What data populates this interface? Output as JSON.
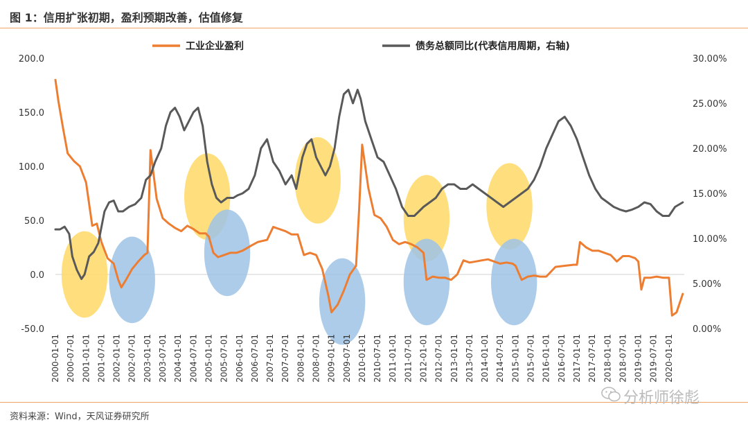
{
  "header": {
    "title": "图 1：信用扩张初期，盈利预期改善，估值修复"
  },
  "footer": {
    "source": "资料来源：Wind，天风证券研究所"
  },
  "watermark": {
    "text": "分析师徐彪",
    "icon": "wechat-icon"
  },
  "colors": {
    "orange": "#ED7D31",
    "gray": "#595959",
    "yellow_circle": "#FFD966",
    "blue_circle": "#9DC3E6",
    "rule": "#F0A060"
  },
  "chart_data": {
    "type": "line",
    "title": "",
    "legend_position": "top",
    "x_tick_labels": [
      "2000-01-01",
      "2000-07-01",
      "2001-01-01",
      "2001-07-01",
      "2002-01-01",
      "2002-07-01",
      "2003-01-01",
      "2003-07-01",
      "2004-01-01",
      "2004-07-01",
      "2005-01-01",
      "2005-07-01",
      "2006-01-01",
      "2006-07-01",
      "2007-01-01",
      "2007-07-01",
      "2008-01-01",
      "2008-07-01",
      "2009-01-01",
      "2009-07-01",
      "2010-01-01",
      "2010-07-01",
      "2011-01-01",
      "2011-07-01",
      "2012-01-01",
      "2012-07-01",
      "2013-01-01",
      "2013-07-01",
      "2014-01-01",
      "2014-07-01",
      "2015-01-01",
      "2015-07-01",
      "2016-01-01",
      "2016-07-01",
      "2017-01-01",
      "2017-07-01",
      "2018-01-01",
      "2018-07-01",
      "2019-01-01",
      "2019-07-01",
      "2020-01-01"
    ],
    "y_left": {
      "ticks": [
        "200.0",
        "150.0",
        "100.0",
        "50.0",
        "0.0",
        "-50.0"
      ],
      "range": [
        -50,
        200
      ]
    },
    "y_right": {
      "ticks": [
        "30.00%",
        "25.00%",
        "20.00%",
        "15.00%",
        "10.00%",
        "5.00%",
        "0.00%"
      ],
      "range": [
        0,
        30
      ]
    },
    "series": [
      {
        "name": "工业企业盈利",
        "axis": "left",
        "points": [
          [
            2000.0,
            180
          ],
          [
            2000.1,
            160
          ],
          [
            2000.25,
            135
          ],
          [
            2000.4,
            112
          ],
          [
            2000.6,
            105
          ],
          [
            2000.8,
            100
          ],
          [
            2001.0,
            85
          ],
          [
            2001.2,
            45
          ],
          [
            2001.35,
            47
          ],
          [
            2001.5,
            30
          ],
          [
            2001.7,
            15
          ],
          [
            2001.9,
            10
          ],
          [
            2002.05,
            -5
          ],
          [
            2002.15,
            -12
          ],
          [
            2002.3,
            -5
          ],
          [
            2002.5,
            5
          ],
          [
            2002.7,
            12
          ],
          [
            2002.9,
            18
          ],
          [
            2003.0,
            20
          ],
          [
            2003.1,
            115
          ],
          [
            2003.3,
            70
          ],
          [
            2003.5,
            52
          ],
          [
            2003.7,
            47
          ],
          [
            2003.9,
            43
          ],
          [
            2004.1,
            40
          ],
          [
            2004.3,
            45
          ],
          [
            2004.5,
            42
          ],
          [
            2004.7,
            38
          ],
          [
            2004.9,
            38
          ],
          [
            2005.0,
            35
          ],
          [
            2005.15,
            20
          ],
          [
            2005.3,
            16
          ],
          [
            2005.5,
            18
          ],
          [
            2005.7,
            20
          ],
          [
            2005.9,
            20
          ],
          [
            2006.1,
            22
          ],
          [
            2006.4,
            27
          ],
          [
            2006.6,
            30
          ],
          [
            2006.9,
            32
          ],
          [
            2007.1,
            44
          ],
          [
            2007.3,
            42
          ],
          [
            2007.5,
            40
          ],
          [
            2007.7,
            37
          ],
          [
            2007.9,
            37
          ],
          [
            2008.1,
            18
          ],
          [
            2008.3,
            20
          ],
          [
            2008.5,
            18
          ],
          [
            2008.7,
            5
          ],
          [
            2008.9,
            -20
          ],
          [
            2009.0,
            -35
          ],
          [
            2009.2,
            -28
          ],
          [
            2009.4,
            -15
          ],
          [
            2009.6,
            0
          ],
          [
            2009.8,
            8
          ],
          [
            2009.9,
            60
          ],
          [
            2010.0,
            120
          ],
          [
            2010.2,
            80
          ],
          [
            2010.4,
            55
          ],
          [
            2010.6,
            52
          ],
          [
            2010.8,
            44
          ],
          [
            2011.0,
            32
          ],
          [
            2011.2,
            28
          ],
          [
            2011.4,
            30
          ],
          [
            2011.6,
            28
          ],
          [
            2011.8,
            25
          ],
          [
            2012.0,
            20
          ],
          [
            2012.1,
            -5
          ],
          [
            2012.3,
            -2
          ],
          [
            2012.5,
            -3
          ],
          [
            2012.7,
            -3
          ],
          [
            2012.9,
            -5
          ],
          [
            2013.1,
            0
          ],
          [
            2013.3,
            13
          ],
          [
            2013.5,
            11
          ],
          [
            2013.7,
            12
          ],
          [
            2013.9,
            13
          ],
          [
            2014.1,
            14
          ],
          [
            2014.3,
            12
          ],
          [
            2014.5,
            10
          ],
          [
            2014.7,
            11
          ],
          [
            2014.9,
            10
          ],
          [
            2015.0,
            8
          ],
          [
            2015.2,
            -5
          ],
          [
            2015.4,
            -2
          ],
          [
            2015.6,
            -1
          ],
          [
            2015.8,
            -2
          ],
          [
            2016.0,
            -2
          ],
          [
            2016.3,
            7
          ],
          [
            2016.6,
            8
          ],
          [
            2016.9,
            9
          ],
          [
            2017.0,
            9
          ],
          [
            2017.1,
            30
          ],
          [
            2017.3,
            25
          ],
          [
            2017.5,
            22
          ],
          [
            2017.7,
            22
          ],
          [
            2017.9,
            20
          ],
          [
            2018.1,
            18
          ],
          [
            2018.3,
            12
          ],
          [
            2018.5,
            17
          ],
          [
            2018.7,
            17
          ],
          [
            2018.9,
            15
          ],
          [
            2019.0,
            12
          ],
          [
            2019.1,
            -14
          ],
          [
            2019.2,
            -3
          ],
          [
            2019.4,
            -3
          ],
          [
            2019.6,
            -2
          ],
          [
            2019.8,
            -3
          ],
          [
            2020.0,
            -3
          ],
          [
            2020.1,
            -38
          ],
          [
            2020.25,
            -35
          ],
          [
            2020.45,
            -18
          ]
        ]
      },
      {
        "name": "债务总额同比(代表信用周期，右轴)",
        "axis": "right",
        "points": [
          [
            2000.0,
            11.0
          ],
          [
            2000.15,
            11.0
          ],
          [
            2000.3,
            11.3
          ],
          [
            2000.45,
            10.5
          ],
          [
            2000.55,
            8.0
          ],
          [
            2000.7,
            6.5
          ],
          [
            2000.85,
            5.5
          ],
          [
            2000.95,
            6.0
          ],
          [
            2001.1,
            8.0
          ],
          [
            2001.25,
            8.5
          ],
          [
            2001.4,
            9.5
          ],
          [
            2001.6,
            13.0
          ],
          [
            2001.75,
            14.0
          ],
          [
            2001.9,
            14.2
          ],
          [
            2002.05,
            13.0
          ],
          [
            2002.2,
            13.0
          ],
          [
            2002.4,
            13.5
          ],
          [
            2002.6,
            13.8
          ],
          [
            2002.8,
            14.5
          ],
          [
            2002.95,
            16.5
          ],
          [
            2003.1,
            17.0
          ],
          [
            2003.25,
            18.5
          ],
          [
            2003.45,
            20.0
          ],
          [
            2003.6,
            22.5
          ],
          [
            2003.75,
            24.0
          ],
          [
            2003.9,
            24.5
          ],
          [
            2004.05,
            23.5
          ],
          [
            2004.2,
            22.0
          ],
          [
            2004.35,
            23.0
          ],
          [
            2004.5,
            24.0
          ],
          [
            2004.65,
            24.5
          ],
          [
            2004.8,
            22.5
          ],
          [
            2004.95,
            18.5
          ],
          [
            2005.1,
            16.0
          ],
          [
            2005.25,
            14.5
          ],
          [
            2005.4,
            14.0
          ],
          [
            2005.6,
            14.5
          ],
          [
            2005.8,
            14.5
          ],
          [
            2005.95,
            14.8
          ],
          [
            2006.1,
            15.0
          ],
          [
            2006.3,
            15.5
          ],
          [
            2006.5,
            17.0
          ],
          [
            2006.7,
            20.0
          ],
          [
            2006.9,
            21.0
          ],
          [
            2007.1,
            18.5
          ],
          [
            2007.3,
            17.5
          ],
          [
            2007.5,
            16.0
          ],
          [
            2007.7,
            17.0
          ],
          [
            2007.85,
            15.5
          ],
          [
            2008.05,
            19.0
          ],
          [
            2008.2,
            20.5
          ],
          [
            2008.35,
            21.0
          ],
          [
            2008.5,
            19.0
          ],
          [
            2008.65,
            18.0
          ],
          [
            2008.8,
            17.0
          ],
          [
            2008.95,
            18.0
          ],
          [
            2009.1,
            20.0
          ],
          [
            2009.25,
            23.5
          ],
          [
            2009.4,
            26.0
          ],
          [
            2009.55,
            26.5
          ],
          [
            2009.7,
            25.0
          ],
          [
            2009.85,
            26.5
          ],
          [
            2009.95,
            25.5
          ],
          [
            2010.1,
            23.0
          ],
          [
            2010.3,
            21.0
          ],
          [
            2010.5,
            19.0
          ],
          [
            2010.7,
            18.5
          ],
          [
            2010.9,
            17.0
          ],
          [
            2011.1,
            15.5
          ],
          [
            2011.3,
            13.5
          ],
          [
            2011.5,
            12.5
          ],
          [
            2011.7,
            12.5
          ],
          [
            2011.85,
            13.0
          ],
          [
            2012.0,
            13.5
          ],
          [
            2012.2,
            14.0
          ],
          [
            2012.4,
            14.5
          ],
          [
            2012.6,
            15.5
          ],
          [
            2012.8,
            16.0
          ],
          [
            2013.0,
            16.0
          ],
          [
            2013.2,
            15.5
          ],
          [
            2013.4,
            15.5
          ],
          [
            2013.6,
            16.0
          ],
          [
            2013.8,
            15.5
          ],
          [
            2014.0,
            15.0
          ],
          [
            2014.2,
            14.5
          ],
          [
            2014.4,
            14.0
          ],
          [
            2014.6,
            13.5
          ],
          [
            2014.8,
            14.0
          ],
          [
            2015.0,
            14.5
          ],
          [
            2015.2,
            15.0
          ],
          [
            2015.4,
            15.5
          ],
          [
            2015.6,
            16.5
          ],
          [
            2015.8,
            18.0
          ],
          [
            2016.0,
            20.0
          ],
          [
            2016.2,
            21.5
          ],
          [
            2016.4,
            23.0
          ],
          [
            2016.6,
            23.5
          ],
          [
            2016.8,
            22.5
          ],
          [
            2017.0,
            21.0
          ],
          [
            2017.2,
            19.0
          ],
          [
            2017.4,
            17.0
          ],
          [
            2017.6,
            15.5
          ],
          [
            2017.8,
            14.5
          ],
          [
            2018.0,
            14.0
          ],
          [
            2018.2,
            13.5
          ],
          [
            2018.4,
            13.2
          ],
          [
            2018.6,
            13.0
          ],
          [
            2018.8,
            13.2
          ],
          [
            2019.0,
            13.5
          ],
          [
            2019.2,
            14.0
          ],
          [
            2019.4,
            13.8
          ],
          [
            2019.6,
            13.0
          ],
          [
            2019.8,
            12.5
          ],
          [
            2020.0,
            12.5
          ],
          [
            2020.2,
            13.5
          ],
          [
            2020.45,
            14.0
          ]
        ]
      }
    ],
    "highlights": [
      {
        "kind": "yellow",
        "x": 2000.95,
        "y_left": 0,
        "rx": 0.75,
        "ry": 40
      },
      {
        "kind": "blue",
        "x": 2002.5,
        "y_left": -5,
        "rx": 0.75,
        "ry": 40
      },
      {
        "kind": "yellow",
        "x": 2004.95,
        "y_left": 72,
        "rx": 0.75,
        "ry": 40
      },
      {
        "kind": "blue",
        "x": 2005.6,
        "y_left": 20,
        "rx": 0.75,
        "ry": 40
      },
      {
        "kind": "yellow",
        "x": 2008.55,
        "y_left": 87,
        "rx": 0.75,
        "ry": 40
      },
      {
        "kind": "blue",
        "x": 2009.35,
        "y_left": -25,
        "rx": 0.75,
        "ry": 40
      },
      {
        "kind": "yellow",
        "x": 2012.1,
        "y_left": 52,
        "rx": 0.75,
        "ry": 40
      },
      {
        "kind": "blue",
        "x": 2012.1,
        "y_left": -7,
        "rx": 0.75,
        "ry": 40
      },
      {
        "kind": "yellow",
        "x": 2014.8,
        "y_left": 63,
        "rx": 0.75,
        "ry": 40
      },
      {
        "kind": "blue",
        "x": 2014.95,
        "y_left": -7,
        "rx": 0.75,
        "ry": 40
      }
    ]
  }
}
